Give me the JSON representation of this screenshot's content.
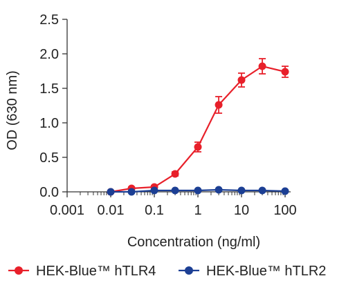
{
  "chart_data": {
    "type": "line",
    "xscale": "log",
    "xlabel": "Concentration (ng/ml)",
    "ylabel": "OD (630 nm)",
    "xlim": [
      0.001,
      100
    ],
    "ylim": [
      0,
      2.5
    ],
    "xticks": [
      "0.001",
      "0.01",
      "0.1",
      "1",
      "10",
      "100"
    ],
    "yticks": [
      "0.0",
      "0.5",
      "1.0",
      "1.5",
      "2.0",
      "2.5"
    ],
    "grid": false,
    "legend_position": "bottom",
    "series": [
      {
        "name": "HEK-Blue™ hTLR4",
        "color": "#e8202a",
        "x": [
          0.01,
          0.03,
          0.1,
          0.3,
          1,
          3,
          10,
          30,
          100
        ],
        "y": [
          0.0,
          0.05,
          0.07,
          0.26,
          0.65,
          1.26,
          1.62,
          1.82,
          1.74
        ],
        "err": [
          0.02,
          0.02,
          0.02,
          0.03,
          0.07,
          0.12,
          0.1,
          0.11,
          0.08
        ]
      },
      {
        "name": "HEK-Blue™ hTLR2",
        "color": "#1c3f94",
        "x": [
          0.01,
          0.03,
          0.1,
          0.3,
          1,
          3,
          10,
          30,
          100
        ],
        "y": [
          0.0,
          0.0,
          0.02,
          0.02,
          0.02,
          0.03,
          0.02,
          0.02,
          0.01
        ],
        "err": [
          0.01,
          0.01,
          0.01,
          0.01,
          0.01,
          0.01,
          0.01,
          0.01,
          0.01
        ]
      }
    ]
  }
}
